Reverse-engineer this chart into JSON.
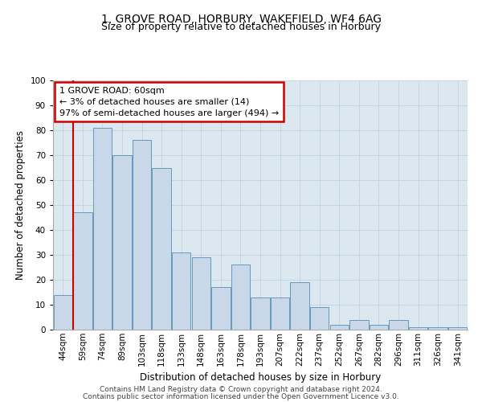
{
  "title1": "1, GROVE ROAD, HORBURY, WAKEFIELD, WF4 6AG",
  "title2": "Size of property relative to detached houses in Horbury",
  "xlabel": "Distribution of detached houses by size in Horbury",
  "ylabel": "Number of detached properties",
  "categories": [
    "44sqm",
    "59sqm",
    "74sqm",
    "89sqm",
    "103sqm",
    "118sqm",
    "133sqm",
    "148sqm",
    "163sqm",
    "178sqm",
    "193sqm",
    "207sqm",
    "222sqm",
    "237sqm",
    "252sqm",
    "267sqm",
    "282sqm",
    "296sqm",
    "311sqm",
    "326sqm",
    "341sqm"
  ],
  "values": [
    14,
    47,
    81,
    70,
    76,
    65,
    31,
    29,
    17,
    26,
    13,
    13,
    19,
    9,
    2,
    4,
    2,
    4,
    1,
    1,
    1
  ],
  "bar_color": "#c8d8e8",
  "bar_edge_color": "#6699bb",
  "highlight_line_color": "#cc0000",
  "highlight_bar_index": 1,
  "annotation_text": "1 GROVE ROAD: 60sqm\n← 3% of detached houses are smaller (14)\n97% of semi-detached houses are larger (494) →",
  "annotation_box_facecolor": "#ffffff",
  "annotation_box_edgecolor": "#cc0000",
  "ylim": [
    0,
    100
  ],
  "yticks": [
    0,
    10,
    20,
    30,
    40,
    50,
    60,
    70,
    80,
    90,
    100
  ],
  "grid_color": "#c5d5e5",
  "bg_color": "#dce8f0",
  "footer1": "Contains HM Land Registry data © Crown copyright and database right 2024.",
  "footer2": "Contains public sector information licensed under the Open Government Licence v3.0.",
  "title1_fontsize": 10,
  "title2_fontsize": 9,
  "xlabel_fontsize": 8.5,
  "ylabel_fontsize": 8.5,
  "tick_fontsize": 7.5,
  "annotation_fontsize": 8,
  "footer_fontsize": 6.5
}
